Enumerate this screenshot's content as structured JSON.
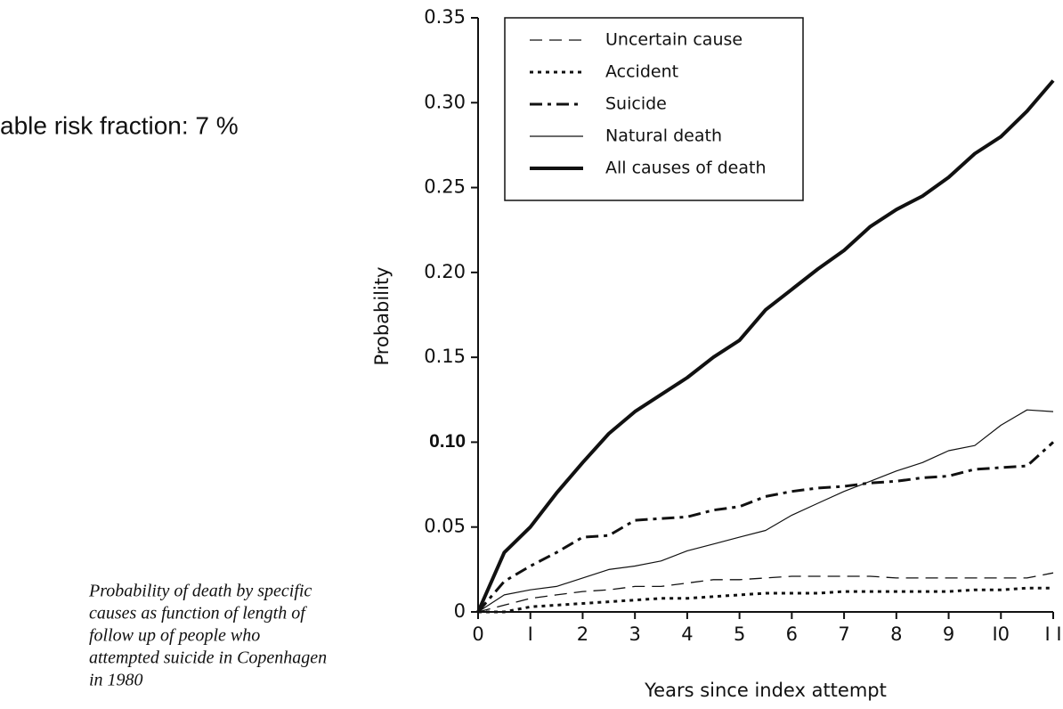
{
  "annotation": "able risk fraction: 7 %",
  "caption_lines": [
    "Probability of death by specific",
    "causes as function of length of",
    "follow up of people who",
    "attempted suicide in Copenhagen",
    "in 1980"
  ],
  "chart_data": {
    "type": "line",
    "xlabel": "Years since index attempt",
    "ylabel": "Probability",
    "x": [
      0,
      0.5,
      1,
      1.5,
      2,
      2.5,
      3,
      3.5,
      4,
      4.5,
      5,
      5.5,
      6,
      6.5,
      7,
      7.5,
      8,
      8.5,
      9,
      9.5,
      10,
      10.5,
      11
    ],
    "xlim": [
      0,
      11
    ],
    "xticks": [
      0,
      {
        "value": 1,
        "label": "I"
      },
      2,
      3,
      4,
      5,
      6,
      7,
      8,
      9,
      {
        "value": 10,
        "label": "I0"
      },
      {
        "value": 11,
        "label": "I I"
      }
    ],
    "ylim": [
      0,
      0.35
    ],
    "yticks": [
      0,
      0.05,
      {
        "value": 0.1,
        "label": "0.10"
      },
      0.15,
      {
        "value": 0.2,
        "label": "0.20"
      },
      0.25,
      {
        "value": 0.3,
        "label": "0.30"
      },
      0.35
    ],
    "legend": "top-left",
    "series": [
      {
        "name": "Uncertain cause",
        "color": "#111111",
        "line_style": "dashed",
        "values": [
          0,
          0.004,
          0.008,
          0.01,
          0.012,
          0.013,
          0.015,
          0.015,
          0.017,
          0.019,
          0.019,
          0.02,
          0.021,
          0.021,
          0.021,
          0.021,
          0.02,
          0.02,
          0.02,
          0.02,
          0.02,
          0.02,
          0.023
        ]
      },
      {
        "name": "Accident",
        "color": "#111111",
        "line_style": "dotted",
        "values": [
          0,
          0,
          0.003,
          0.004,
          0.005,
          0.006,
          0.007,
          0.008,
          0.008,
          0.009,
          0.01,
          0.011,
          0.011,
          0.011,
          0.012,
          0.012,
          0.012,
          0.012,
          0.012,
          0.013,
          0.013,
          0.014,
          0.014
        ]
      },
      {
        "name": "Suicide",
        "color": "#111111",
        "line_style": "dashdot",
        "values": [
          0,
          0.018,
          0.027,
          0.035,
          0.044,
          0.045,
          0.054,
          0.055,
          0.056,
          0.06,
          0.062,
          0.068,
          0.071,
          0.073,
          0.074,
          0.076,
          0.077,
          0.079,
          0.08,
          0.084,
          0.085,
          0.086,
          0.1
        ]
      },
      {
        "name": "Natural death",
        "color": "#111111",
        "line_style": "solid",
        "values": [
          0,
          0.01,
          0.013,
          0.015,
          0.02,
          0.025,
          0.027,
          0.03,
          0.036,
          0.04,
          0.044,
          0.048,
          0.057,
          0.064,
          0.071,
          0.077,
          0.083,
          0.088,
          0.095,
          0.098,
          0.11,
          0.119,
          0.118
        ]
      },
      {
        "name": "All causes of death",
        "color": "#111111",
        "line_style": "thick",
        "values": [
          0,
          0.035,
          0.05,
          0.07,
          0.088,
          0.105,
          0.118,
          0.128,
          0.138,
          0.15,
          0.16,
          0.178,
          0.19,
          0.202,
          0.213,
          0.227,
          0.237,
          0.245,
          0.256,
          0.27,
          0.28,
          0.295,
          0.313
        ]
      }
    ]
  }
}
